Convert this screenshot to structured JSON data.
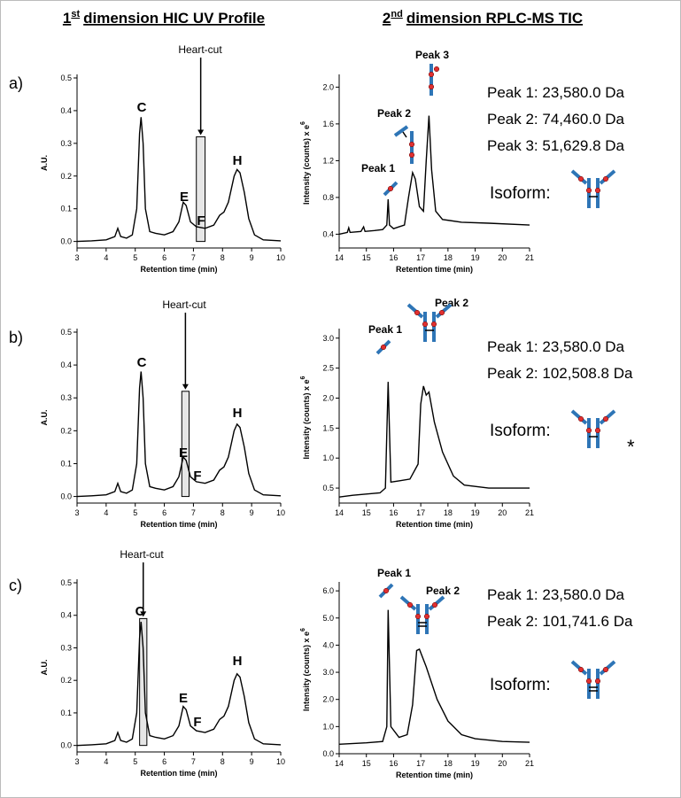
{
  "headers": [
    {
      "main": "1",
      "sup": "st",
      "rest": "dimension HIC UV Profile"
    },
    {
      "main": "2",
      "sup": "nd",
      "rest": "dimension RPLC-MS TIC"
    }
  ],
  "panels": [
    {
      "label": "a)",
      "masses": [
        "Peak 1: 23,580.0 Da",
        "Peak 2: 74,460.0 Da",
        "Peak 3: 51,629.8 Da"
      ],
      "isoform": "Isoform:"
    },
    {
      "label": "b)",
      "masses": [
        "Peak 1: 23,580.0 Da",
        "Peak 2: 102,508.8 Da"
      ],
      "isoform": "Isoform:",
      "note": "*"
    },
    {
      "label": "c)",
      "masses": [
        "Peak 1: 23,580.0 Da",
        "Peak 2: 101,741.6 Da"
      ],
      "isoform": "Isoform:"
    }
  ],
  "chart_data": [
    {
      "type": "line",
      "xlabel": "Retention time (min)",
      "ylabel": "A.U.",
      "color": "#000000",
      "x": [
        3.0,
        3.5,
        4.0,
        4.3,
        4.4,
        4.5,
        4.7,
        4.9,
        5.05,
        5.15,
        5.2,
        5.27,
        5.35,
        5.5,
        5.7,
        6.0,
        6.3,
        6.5,
        6.65,
        6.75,
        6.9,
        7.1,
        7.4,
        7.7,
        7.9,
        8.05,
        8.2,
        8.4,
        8.5,
        8.6,
        8.75,
        8.9,
        9.1,
        9.4,
        10.0
      ],
      "values": [
        0.0,
        0.002,
        0.005,
        0.015,
        0.04,
        0.015,
        0.01,
        0.02,
        0.1,
        0.33,
        0.38,
        0.3,
        0.1,
        0.03,
        0.025,
        0.02,
        0.03,
        0.06,
        0.12,
        0.11,
        0.06,
        0.045,
        0.04,
        0.05,
        0.08,
        0.09,
        0.12,
        0.2,
        0.22,
        0.21,
        0.15,
        0.07,
        0.02,
        0.005,
        0.002
      ],
      "xlim": [
        3,
        10
      ],
      "ylim": [
        -0.02,
        0.5
      ],
      "xticks": [
        3,
        4,
        5,
        6,
        7,
        8,
        9,
        10
      ],
      "yticks": [
        {
          "value": 0,
          "label": "0.0"
        },
        0.1,
        0.2,
        0.3,
        0.4,
        0.5
      ],
      "annotations": [
        "C",
        "E",
        "F",
        "H",
        "Heart-cut"
      ],
      "highlight": {
        "x": [
          7.1,
          7.4
        ],
        "y": 0.32
      }
    },
    {
      "type": "line",
      "xlabel": "Retention time (min)",
      "ylabel": "Intensity (counts)  x e",
      "ylabel_sup": "6",
      "color": "#000000",
      "x": [
        14.0,
        14.3,
        14.35,
        14.4,
        14.8,
        14.9,
        14.95,
        15.3,
        15.6,
        15.75,
        15.8,
        15.85,
        16.0,
        16.2,
        16.4,
        16.55,
        16.7,
        16.8,
        16.95,
        17.1,
        17.2,
        17.3,
        17.4,
        17.55,
        17.8,
        18.5,
        19.5,
        21.0
      ],
      "values": [
        0.4,
        0.42,
        0.47,
        0.42,
        0.43,
        0.48,
        0.43,
        0.44,
        0.45,
        0.5,
        0.78,
        0.5,
        0.46,
        0.48,
        0.5,
        0.8,
        1.07,
        1.0,
        0.7,
        0.65,
        1.2,
        1.69,
        1.1,
        0.65,
        0.56,
        0.53,
        0.52,
        0.5
      ],
      "xlim": [
        14,
        21
      ],
      "ylim": [
        0.25,
        2.1
      ],
      "xticks": [
        14,
        15,
        16,
        17,
        18,
        19,
        20,
        21
      ],
      "yticks": [
        0.4,
        0.8,
        1.2,
        1.6,
        {
          "value": 2,
          "label": "2.0"
        }
      ],
      "annotations": [
        "Peak 1",
        "Peak 2",
        "Peak 3"
      ]
    },
    {
      "type": "line",
      "xlabel": "Retention time (min)",
      "ylabel": "A.U.",
      "color": "#000000",
      "x": [
        3.0,
        3.5,
        4.0,
        4.3,
        4.4,
        4.5,
        4.7,
        4.9,
        5.05,
        5.15,
        5.2,
        5.27,
        5.35,
        5.5,
        5.7,
        6.0,
        6.3,
        6.5,
        6.65,
        6.75,
        6.9,
        7.1,
        7.4,
        7.7,
        7.9,
        8.05,
        8.2,
        8.4,
        8.5,
        8.6,
        8.75,
        8.9,
        9.1,
        9.4,
        10.0
      ],
      "values": [
        0.0,
        0.002,
        0.005,
        0.015,
        0.04,
        0.015,
        0.01,
        0.02,
        0.1,
        0.33,
        0.38,
        0.3,
        0.1,
        0.03,
        0.025,
        0.02,
        0.03,
        0.06,
        0.12,
        0.11,
        0.06,
        0.045,
        0.04,
        0.05,
        0.08,
        0.09,
        0.12,
        0.2,
        0.22,
        0.21,
        0.15,
        0.07,
        0.02,
        0.005,
        0.002
      ],
      "xlim": [
        3,
        10
      ],
      "ylim": [
        -0.02,
        0.5
      ],
      "xticks": [
        3,
        4,
        5,
        6,
        7,
        8,
        9,
        10
      ],
      "yticks": [
        {
          "value": 0,
          "label": "0.0"
        },
        0.1,
        0.2,
        0.3,
        0.4,
        0.5
      ],
      "annotations": [
        "C",
        "E",
        "F",
        "H",
        "Heart-cut"
      ],
      "highlight": {
        "x": [
          6.6,
          6.85
        ],
        "y": 0.32
      }
    },
    {
      "type": "line",
      "xlabel": "Retention time (min)",
      "ylabel": "Intensity (counts)  x e",
      "ylabel_sup": "6",
      "color": "#000000",
      "x": [
        14.0,
        14.5,
        15.0,
        15.5,
        15.7,
        15.8,
        15.9,
        16.2,
        16.6,
        16.9,
        17.0,
        17.1,
        17.2,
        17.3,
        17.5,
        17.8,
        18.2,
        18.6,
        19.5,
        21.0
      ],
      "values": [
        0.35,
        0.38,
        0.4,
        0.42,
        0.5,
        2.27,
        0.6,
        0.62,
        0.65,
        0.9,
        1.9,
        2.2,
        2.05,
        2.1,
        1.6,
        1.1,
        0.7,
        0.55,
        0.5,
        0.5
      ],
      "xlim": [
        14,
        21
      ],
      "ylim": [
        0.25,
        3.1
      ],
      "xticks": [
        14,
        15,
        16,
        17,
        18,
        19,
        20,
        21
      ],
      "yticks": [
        0.5,
        {
          "value": 1,
          "label": "1.0"
        },
        1.5,
        {
          "value": 2,
          "label": "2.0"
        },
        2.5,
        {
          "value": 3,
          "label": "3.0"
        }
      ],
      "annotations": [
        "Peak 1",
        "Peak 2"
      ]
    },
    {
      "type": "line",
      "xlabel": "Retention time (min)",
      "ylabel": "A.U.",
      "color": "#000000",
      "x": [
        3.0,
        3.5,
        4.0,
        4.3,
        4.4,
        4.5,
        4.7,
        4.9,
        5.05,
        5.15,
        5.2,
        5.27,
        5.35,
        5.5,
        5.7,
        6.0,
        6.3,
        6.5,
        6.65,
        6.75,
        6.9,
        7.1,
        7.4,
        7.7,
        7.9,
        8.05,
        8.2,
        8.4,
        8.5,
        8.6,
        8.75,
        8.9,
        9.1,
        9.4,
        10.0
      ],
      "values": [
        0.0,
        0.002,
        0.005,
        0.015,
        0.04,
        0.015,
        0.01,
        0.02,
        0.1,
        0.33,
        0.38,
        0.3,
        0.1,
        0.03,
        0.025,
        0.02,
        0.03,
        0.06,
        0.12,
        0.11,
        0.06,
        0.045,
        0.04,
        0.05,
        0.08,
        0.09,
        0.12,
        0.2,
        0.22,
        0.21,
        0.15,
        0.07,
        0.02,
        0.005,
        0.002
      ],
      "xlim": [
        3,
        10
      ],
      "ylim": [
        -0.02,
        0.5
      ],
      "xticks": [
        3,
        4,
        5,
        6,
        7,
        8,
        9,
        10
      ],
      "yticks": [
        {
          "value": 0,
          "label": "0.0"
        },
        0.1,
        0.2,
        0.3,
        0.4,
        0.5
      ],
      "annotations": [
        "C",
        "E",
        "F",
        "H",
        "Heart-cut"
      ],
      "highlight": {
        "x": [
          5.15,
          5.4
        ],
        "y": 0.39
      }
    },
    {
      "type": "line",
      "xlabel": "Retention time (min)",
      "ylabel": "Intensity (counts)  x e",
      "ylabel_sup": "6",
      "color": "#000000",
      "x": [
        14.0,
        15.0,
        15.6,
        15.75,
        15.8,
        15.9,
        16.2,
        16.5,
        16.7,
        16.85,
        16.95,
        17.2,
        17.6,
        18.0,
        18.5,
        19.0,
        20.0,
        21.0
      ],
      "values": [
        0.35,
        0.4,
        0.45,
        1.0,
        5.3,
        1.0,
        0.6,
        0.7,
        1.8,
        3.8,
        3.85,
        3.2,
        2.0,
        1.2,
        0.7,
        0.55,
        0.45,
        0.42
      ],
      "xlim": [
        14,
        21
      ],
      "ylim": [
        0,
        6.2
      ],
      "xticks": [
        14,
        15,
        16,
        17,
        18,
        19,
        20,
        21
      ],
      "yticks": [
        {
          "value": 0,
          "label": "0.0"
        },
        {
          "value": 1,
          "label": "1.0"
        },
        {
          "value": 2,
          "label": "2.0"
        },
        {
          "value": 3,
          "label": "3.0"
        },
        {
          "value": 4,
          "label": "4.0"
        },
        {
          "value": 5,
          "label": "5.0"
        },
        {
          "value": 6,
          "label": "6.0"
        }
      ],
      "annotations": [
        "Peak 1",
        "Peak 2"
      ]
    }
  ]
}
